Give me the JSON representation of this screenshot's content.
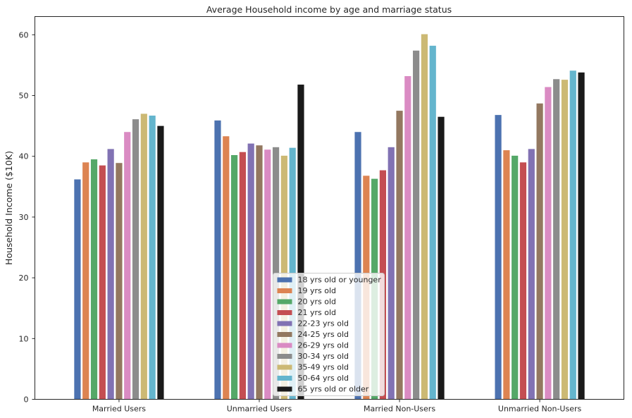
{
  "chart_data": {
    "type": "bar",
    "title": "Average Household income by age and marriage status",
    "xlabel": "",
    "ylabel": "Household Income ($10K)",
    "ylim": [
      0,
      63
    ],
    "yticks": [
      0,
      10,
      20,
      30,
      40,
      50,
      60
    ],
    "grid": false,
    "legend_position": "bottom-center",
    "categories": [
      "Married Users",
      "Unmarried Users",
      "Married Non-Users",
      "Unmarried Non-Users"
    ],
    "series": [
      {
        "name": "18 yrs old or younger",
        "color": "#4c72b0",
        "values": [
          36.2,
          45.9,
          44.0,
          46.8
        ]
      },
      {
        "name": "19 yrs old",
        "color": "#dd8452",
        "values": [
          39.0,
          43.3,
          36.8,
          41.0
        ]
      },
      {
        "name": "20 yrs old",
        "color": "#55a868",
        "values": [
          39.5,
          40.2,
          36.3,
          40.1
        ]
      },
      {
        "name": "21 yrs old",
        "color": "#c44e52",
        "values": [
          38.5,
          40.7,
          37.7,
          39.0
        ]
      },
      {
        "name": "22-23 yrs old",
        "color": "#8172b3",
        "values": [
          41.2,
          42.1,
          41.5,
          41.2
        ]
      },
      {
        "name": "24-25 yrs old",
        "color": "#937860",
        "values": [
          38.9,
          41.8,
          47.5,
          48.7
        ]
      },
      {
        "name": "26-29 yrs old",
        "color": "#da8bc3",
        "values": [
          44.0,
          41.1,
          53.2,
          51.4
        ]
      },
      {
        "name": "30-34 yrs old",
        "color": "#8c8c8c",
        "values": [
          46.1,
          41.5,
          57.4,
          52.7
        ]
      },
      {
        "name": "35-49 yrs old",
        "color": "#ccb974",
        "values": [
          47.0,
          40.1,
          60.1,
          52.6
        ]
      },
      {
        "name": "50-64 yrs old",
        "color": "#64b5cd",
        "values": [
          46.7,
          41.4,
          58.2,
          54.1
        ]
      },
      {
        "name": "65 yrs old or older",
        "color": "#1a1a1a",
        "values": [
          45.0,
          51.8,
          46.5,
          53.8
        ]
      }
    ]
  }
}
